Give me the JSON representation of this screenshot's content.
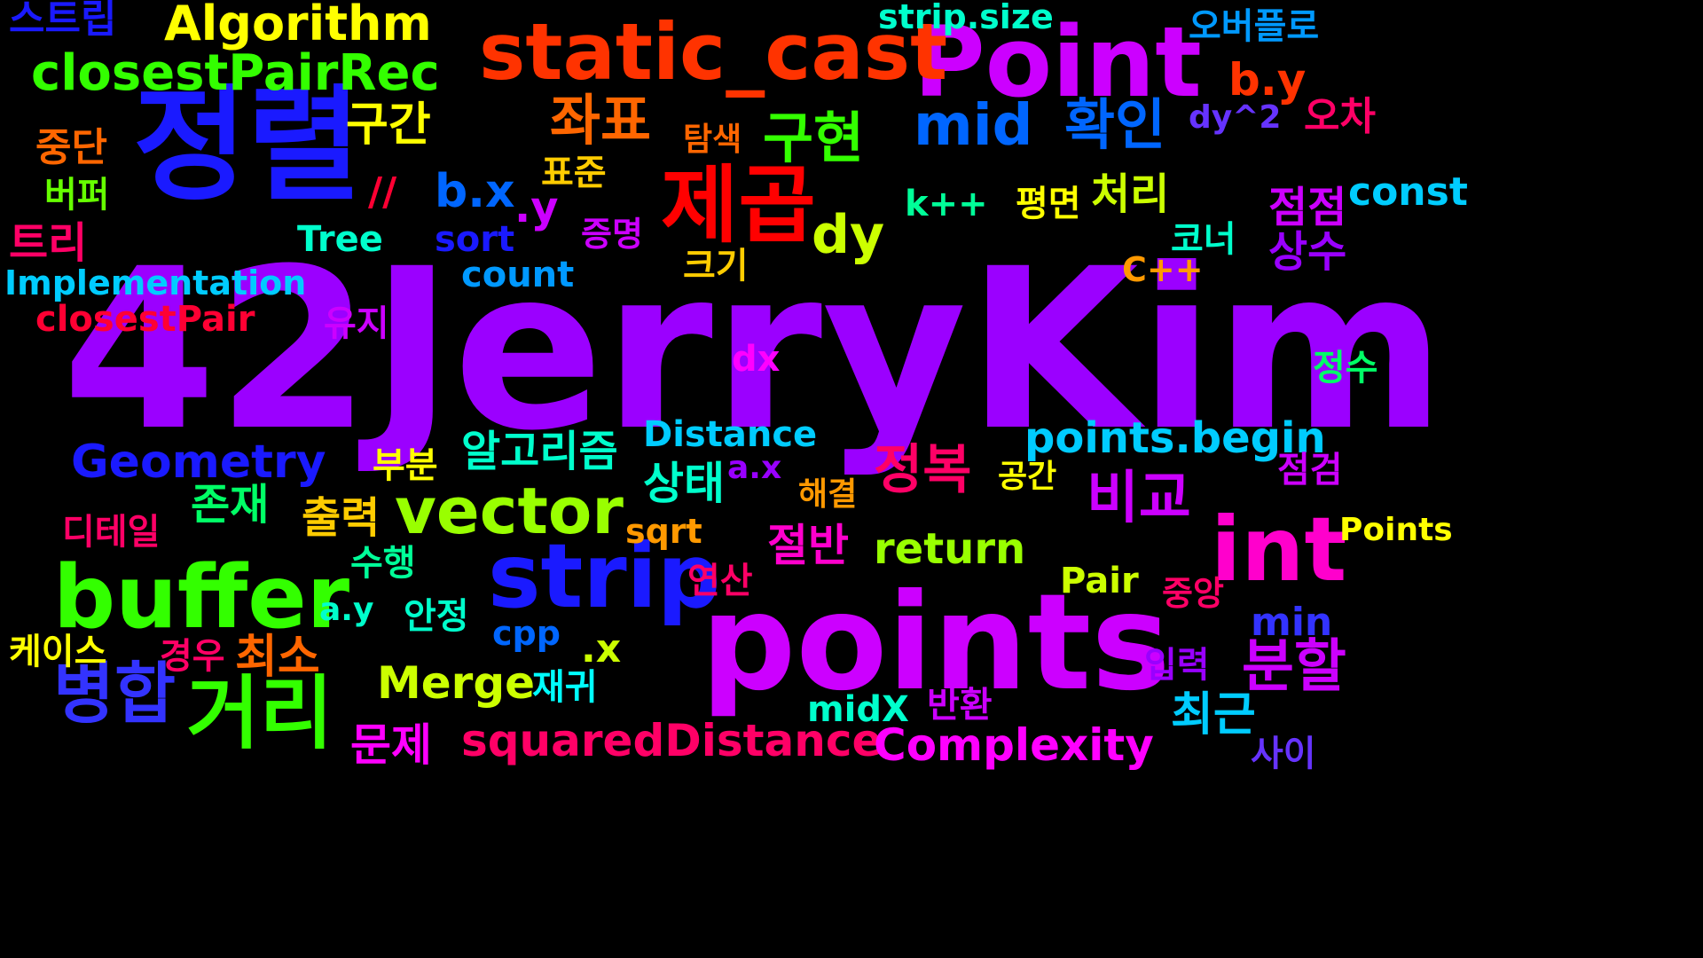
{
  "words": [
    {
      "text": "42JerryKim",
      "color": "#9B00FF"
    },
    {
      "text": "points",
      "color": "#CC00FF"
    },
    {
      "text": "정렬",
      "color": "#1A1AFF"
    },
    {
      "text": "Point",
      "color": "#CC00FF"
    },
    {
      "text": "static_cast",
      "color": "#FF3300"
    },
    {
      "text": "int",
      "color": "#FF00CC"
    },
    {
      "text": "strip",
      "color": "#1A1AFF"
    },
    {
      "text": "buffer",
      "color": "#33FF00"
    },
    {
      "text": "vector",
      "color": "#99FF00"
    },
    {
      "text": "제곱",
      "color": "#FF0000"
    },
    {
      "text": "거리",
      "color": "#33FF00"
    },
    {
      "text": "병합",
      "color": "#3333FF"
    },
    {
      "text": "분할",
      "color": "#CC00FF"
    },
    {
      "text": "정복",
      "color": "#FF0066"
    },
    {
      "text": "비교",
      "color": "#CC00FF"
    },
    {
      "text": "좌표",
      "color": "#FF6600"
    },
    {
      "text": "구현",
      "color": "#33FF00"
    },
    {
      "text": "확인",
      "color": "#0066FF"
    },
    {
      "text": "mid",
      "color": "#0066FF"
    },
    {
      "text": "dy",
      "color": "#CCFF00"
    },
    {
      "text": "Algorithm",
      "color": "#FFFF00"
    },
    {
      "text": "closestPairRec",
      "color": "#33FF00"
    },
    {
      "text": "squaredDistance",
      "color": "#FF0066"
    },
    {
      "text": "Complexity",
      "color": "#FF00FF"
    },
    {
      "text": "Geometry",
      "color": "#1A1AFF"
    },
    {
      "text": "알고리즘",
      "color": "#00FFCC"
    },
    {
      "text": "points.begin",
      "color": "#00CCFF"
    },
    {
      "text": "return",
      "color": "#99FF00"
    },
    {
      "text": "Merge",
      "color": "#CCFF00"
    },
    {
      "text": "최소",
      "color": "#FF6600"
    },
    {
      "text": "구간",
      "color": "#FFFF00"
    },
    {
      "text": "b.y",
      "color": "#FF3300"
    },
    {
      "text": "b.x",
      "color": "#0066FF"
    },
    {
      "text": "strip.size",
      "color": "#00FFCC"
    },
    {
      "text": "const",
      "color": "#00CCFF"
    },
    {
      "text": "Implementation",
      "color": "#00CCFF"
    },
    {
      "text": "closestPair",
      "color": "#FF0033"
    },
    {
      "text": "Distance",
      "color": "#00CCFF"
    },
    {
      "text": "출력",
      "color": "#FFCC00"
    },
    {
      "text": "존재",
      "color": "#00FF66"
    },
    {
      "text": "상태",
      "color": "#00FFCC"
    },
    {
      "text": "절반",
      "color": "#FF00CC"
    },
    {
      "text": "최근",
      "color": "#00CCFF"
    },
    {
      "text": "문제",
      "color": "#FF00FF"
    },
    {
      "text": "중단",
      "color": "#FF6600"
    },
    {
      "text": "트리",
      "color": "#FF0066"
    },
    {
      "text": "처리",
      "color": "#CCFF00"
    },
    {
      "text": "점점",
      "color": "#CC00FF"
    },
    {
      "text": "상수",
      "color": "#9900FF"
    },
    {
      "text": "오버플로",
      "color": "#0099FF"
    },
    {
      "text": "스트립",
      "color": "#1A1AFF"
    },
    {
      "text": "오차",
      "color": "#FF0066"
    },
    {
      "text": "탐색",
      "color": "#FF6600"
    },
    {
      "text": "표준",
      "color": "#FFCC00"
    },
    {
      "text": "증명",
      "color": "#CC00FF"
    },
    {
      "text": "버퍼",
      "color": "#66FF00"
    },
    {
      "text": "유지",
      "color": "#CC00FF"
    },
    {
      "text": "평면",
      "color": "#FFFF00"
    },
    {
      "text": "코너",
      "color": "#00FFCC"
    },
    {
      "text": "크기",
      "color": "#FFCC00"
    },
    {
      "text": "k++",
      "color": "#00FF99"
    },
    {
      "text": "Tree",
      "color": "#00FFCC"
    },
    {
      "text": "sort",
      "color": "#1A1AFF"
    },
    {
      "text": "count",
      "color": "#0099FF"
    },
    {
      "text": "dx",
      "color": "#FF00FF"
    },
    {
      "text": "a.x",
      "color": "#9900FF"
    },
    {
      "text": "a.y",
      "color": "#00FFCC"
    },
    {
      "text": ".y",
      "color": "#CC00FF"
    },
    {
      "text": ".x",
      "color": "#CCFF00"
    },
    {
      "text": "//",
      "color": "#FF0033"
    },
    {
      "text": "dy^2",
      "color": "#6633FF"
    },
    {
      "text": "cpp",
      "color": "#0066FF"
    },
    {
      "text": "min",
      "color": "#3333FF"
    },
    {
      "text": "midX",
      "color": "#00FFCC"
    },
    {
      "text": "sqrt",
      "color": "#FF9900"
    },
    {
      "text": "Pair",
      "color": "#CCFF00"
    },
    {
      "text": "Points",
      "color": "#FFFF00"
    },
    {
      "text": "C++",
      "color": "#FF9900"
    },
    {
      "text": "부분",
      "color": "#FFFF00"
    },
    {
      "text": "해결",
      "color": "#FF9900"
    },
    {
      "text": "연산",
      "color": "#FF0066"
    },
    {
      "text": "수행",
      "color": "#00FF99"
    },
    {
      "text": "안정",
      "color": "#00FFCC"
    },
    {
      "text": "재귀",
      "color": "#00FFFF"
    },
    {
      "text": "반환",
      "color": "#CC00FF"
    },
    {
      "text": "입력",
      "color": "#9900FF"
    },
    {
      "text": "사이",
      "color": "#6633FF"
    },
    {
      "text": "공간",
      "color": "#FFFF00"
    },
    {
      "text": "경우",
      "color": "#FF0066"
    },
    {
      "text": "케이스",
      "color": "#FFFF00"
    },
    {
      "text": "디테일",
      "color": "#FF0066"
    },
    {
      "text": "정수",
      "color": "#00FF66"
    },
    {
      "text": "점검",
      "color": "#CC00FF"
    },
    {
      "text": "중앙",
      "color": "#FF0066"
    }
  ]
}
